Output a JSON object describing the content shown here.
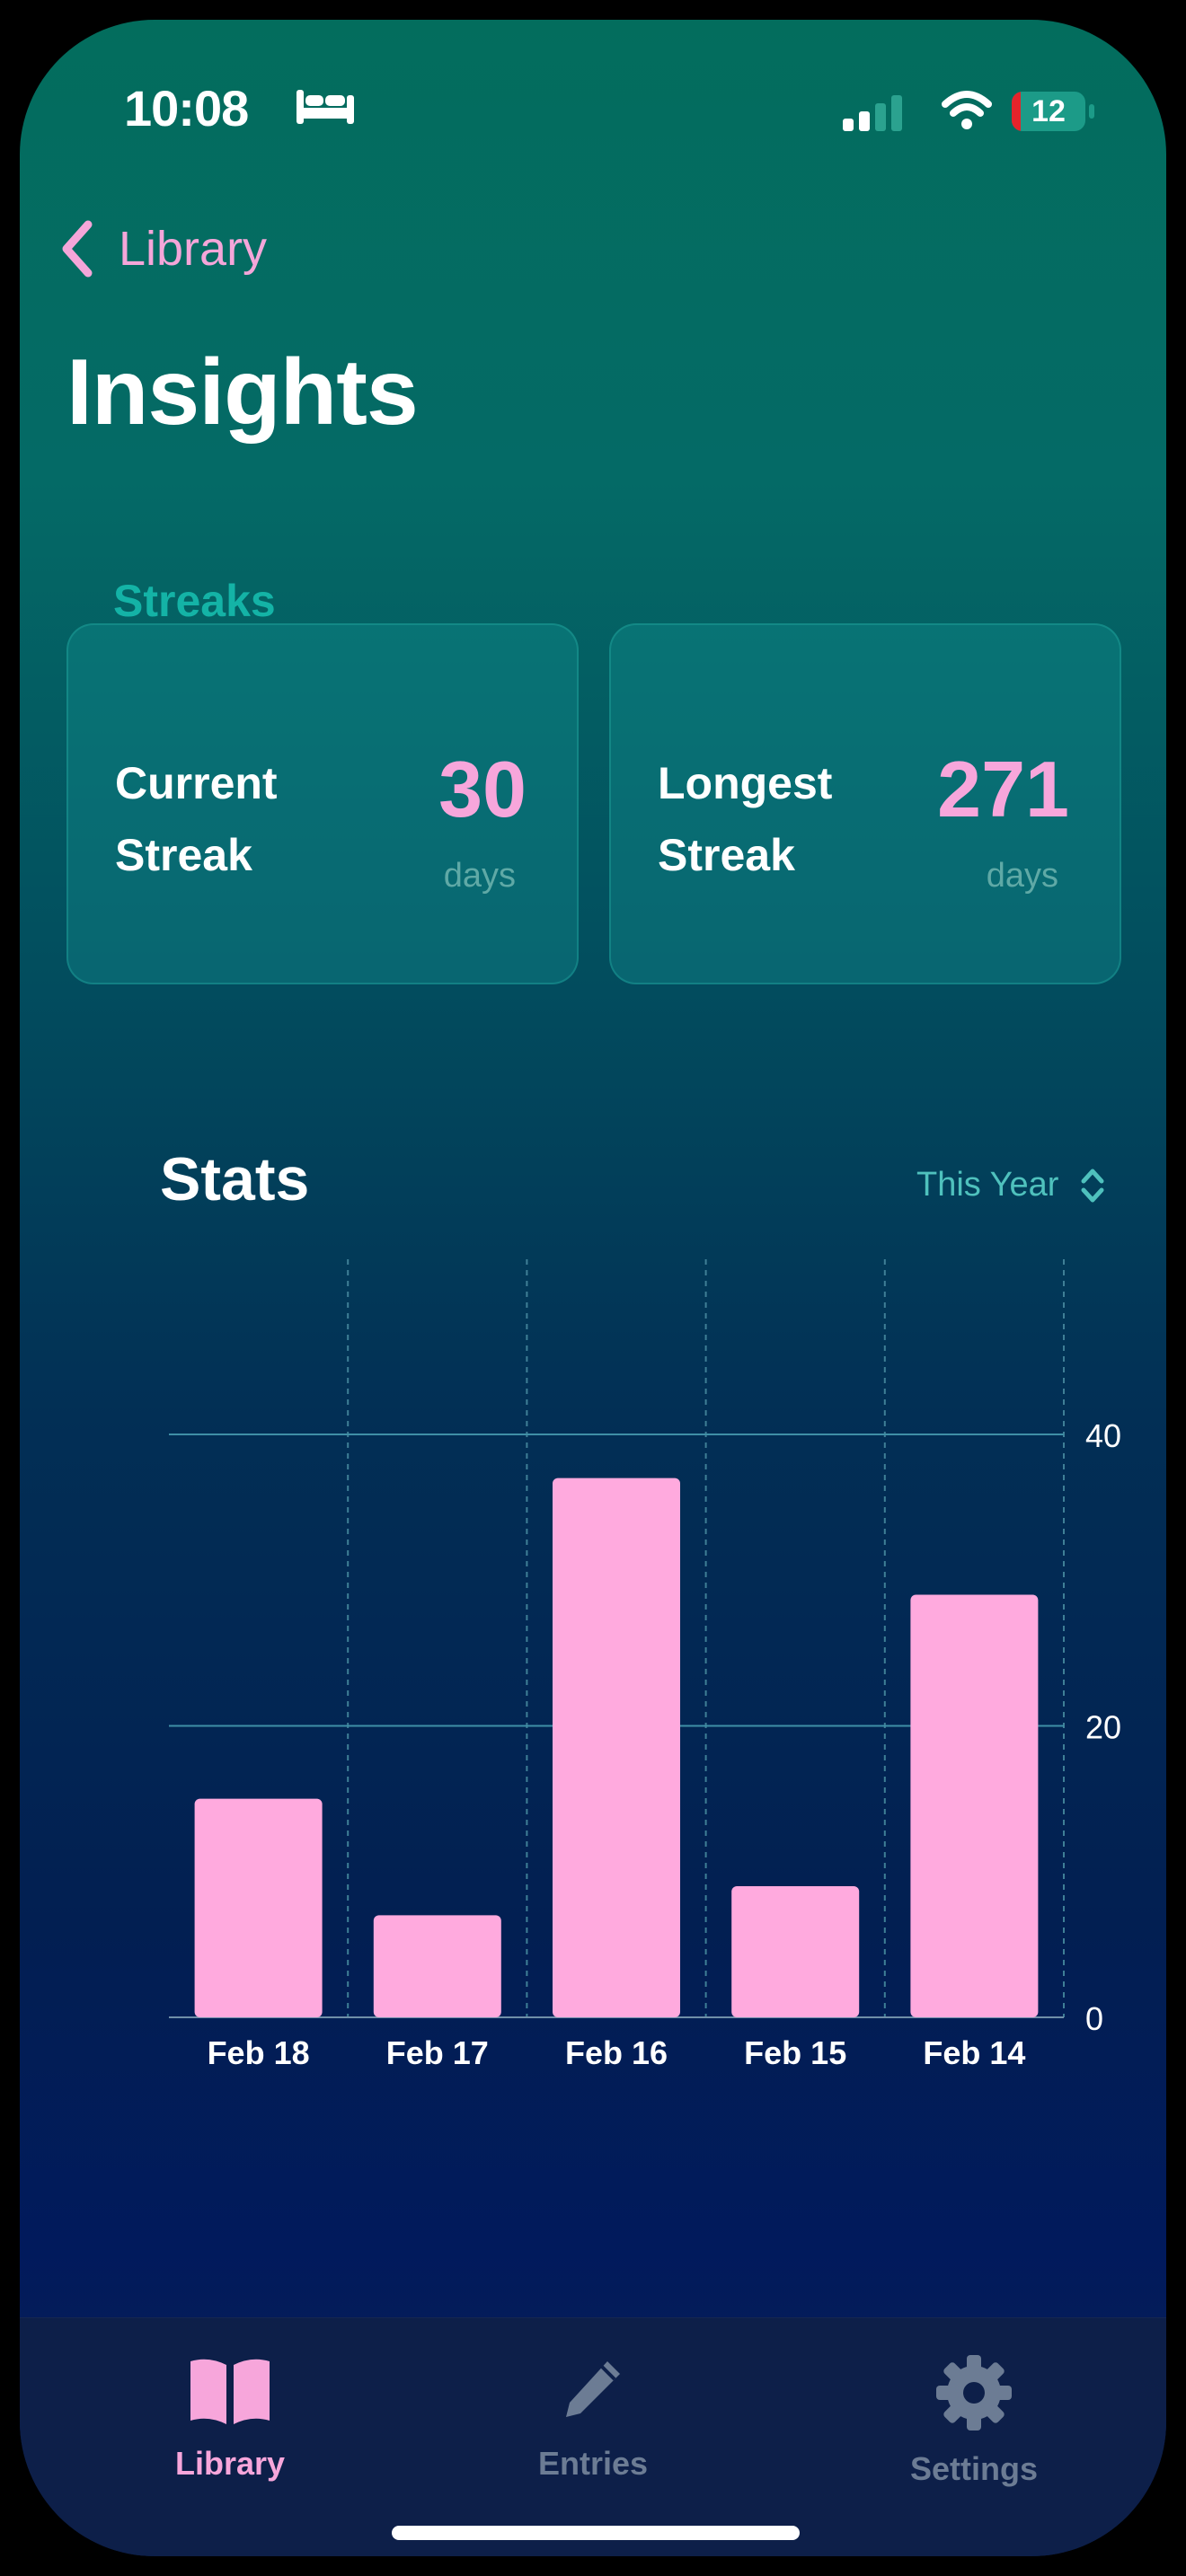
{
  "status_bar": {
    "time": "10:08",
    "battery": "12",
    "sleep_icon": "bed-icon",
    "signal_icon": "signal-icon",
    "wifi_icon": "wifi-icon"
  },
  "nav": {
    "back_label": "Library",
    "back_icon": "chevron-left-icon"
  },
  "page": {
    "title": "Insights"
  },
  "streaks": {
    "section_label": "Streaks",
    "current": {
      "label_line1": "Current",
      "label_line2": "Streak",
      "value": "30",
      "unit": "days"
    },
    "longest": {
      "label_line1": "Longest",
      "label_line2": "Streak",
      "value": "271",
      "unit": "days"
    }
  },
  "stats": {
    "title": "Stats",
    "period": "This Year"
  },
  "colors": {
    "accent_pink": "#f7a6db",
    "teal": "#14b3a6",
    "bar": "#ffaade"
  },
  "chart_data": {
    "type": "bar",
    "title": "Stats",
    "categories": [
      "Feb 18",
      "Feb 17",
      "Feb 16",
      "Feb 15",
      "Feb 14"
    ],
    "values": [
      15,
      7,
      37,
      9,
      29
    ],
    "y_ticks": [
      "0",
      "20",
      "40"
    ],
    "ylim": [
      0,
      40
    ],
    "y_axis_position": "right",
    "xlabel": "",
    "ylabel": ""
  },
  "tabbar": {
    "items": [
      {
        "label": "Library",
        "icon": "book-icon",
        "active": true
      },
      {
        "label": "Entries",
        "icon": "pencil-icon",
        "active": false
      },
      {
        "label": "Settings",
        "icon": "gear-icon",
        "active": false
      }
    ]
  }
}
